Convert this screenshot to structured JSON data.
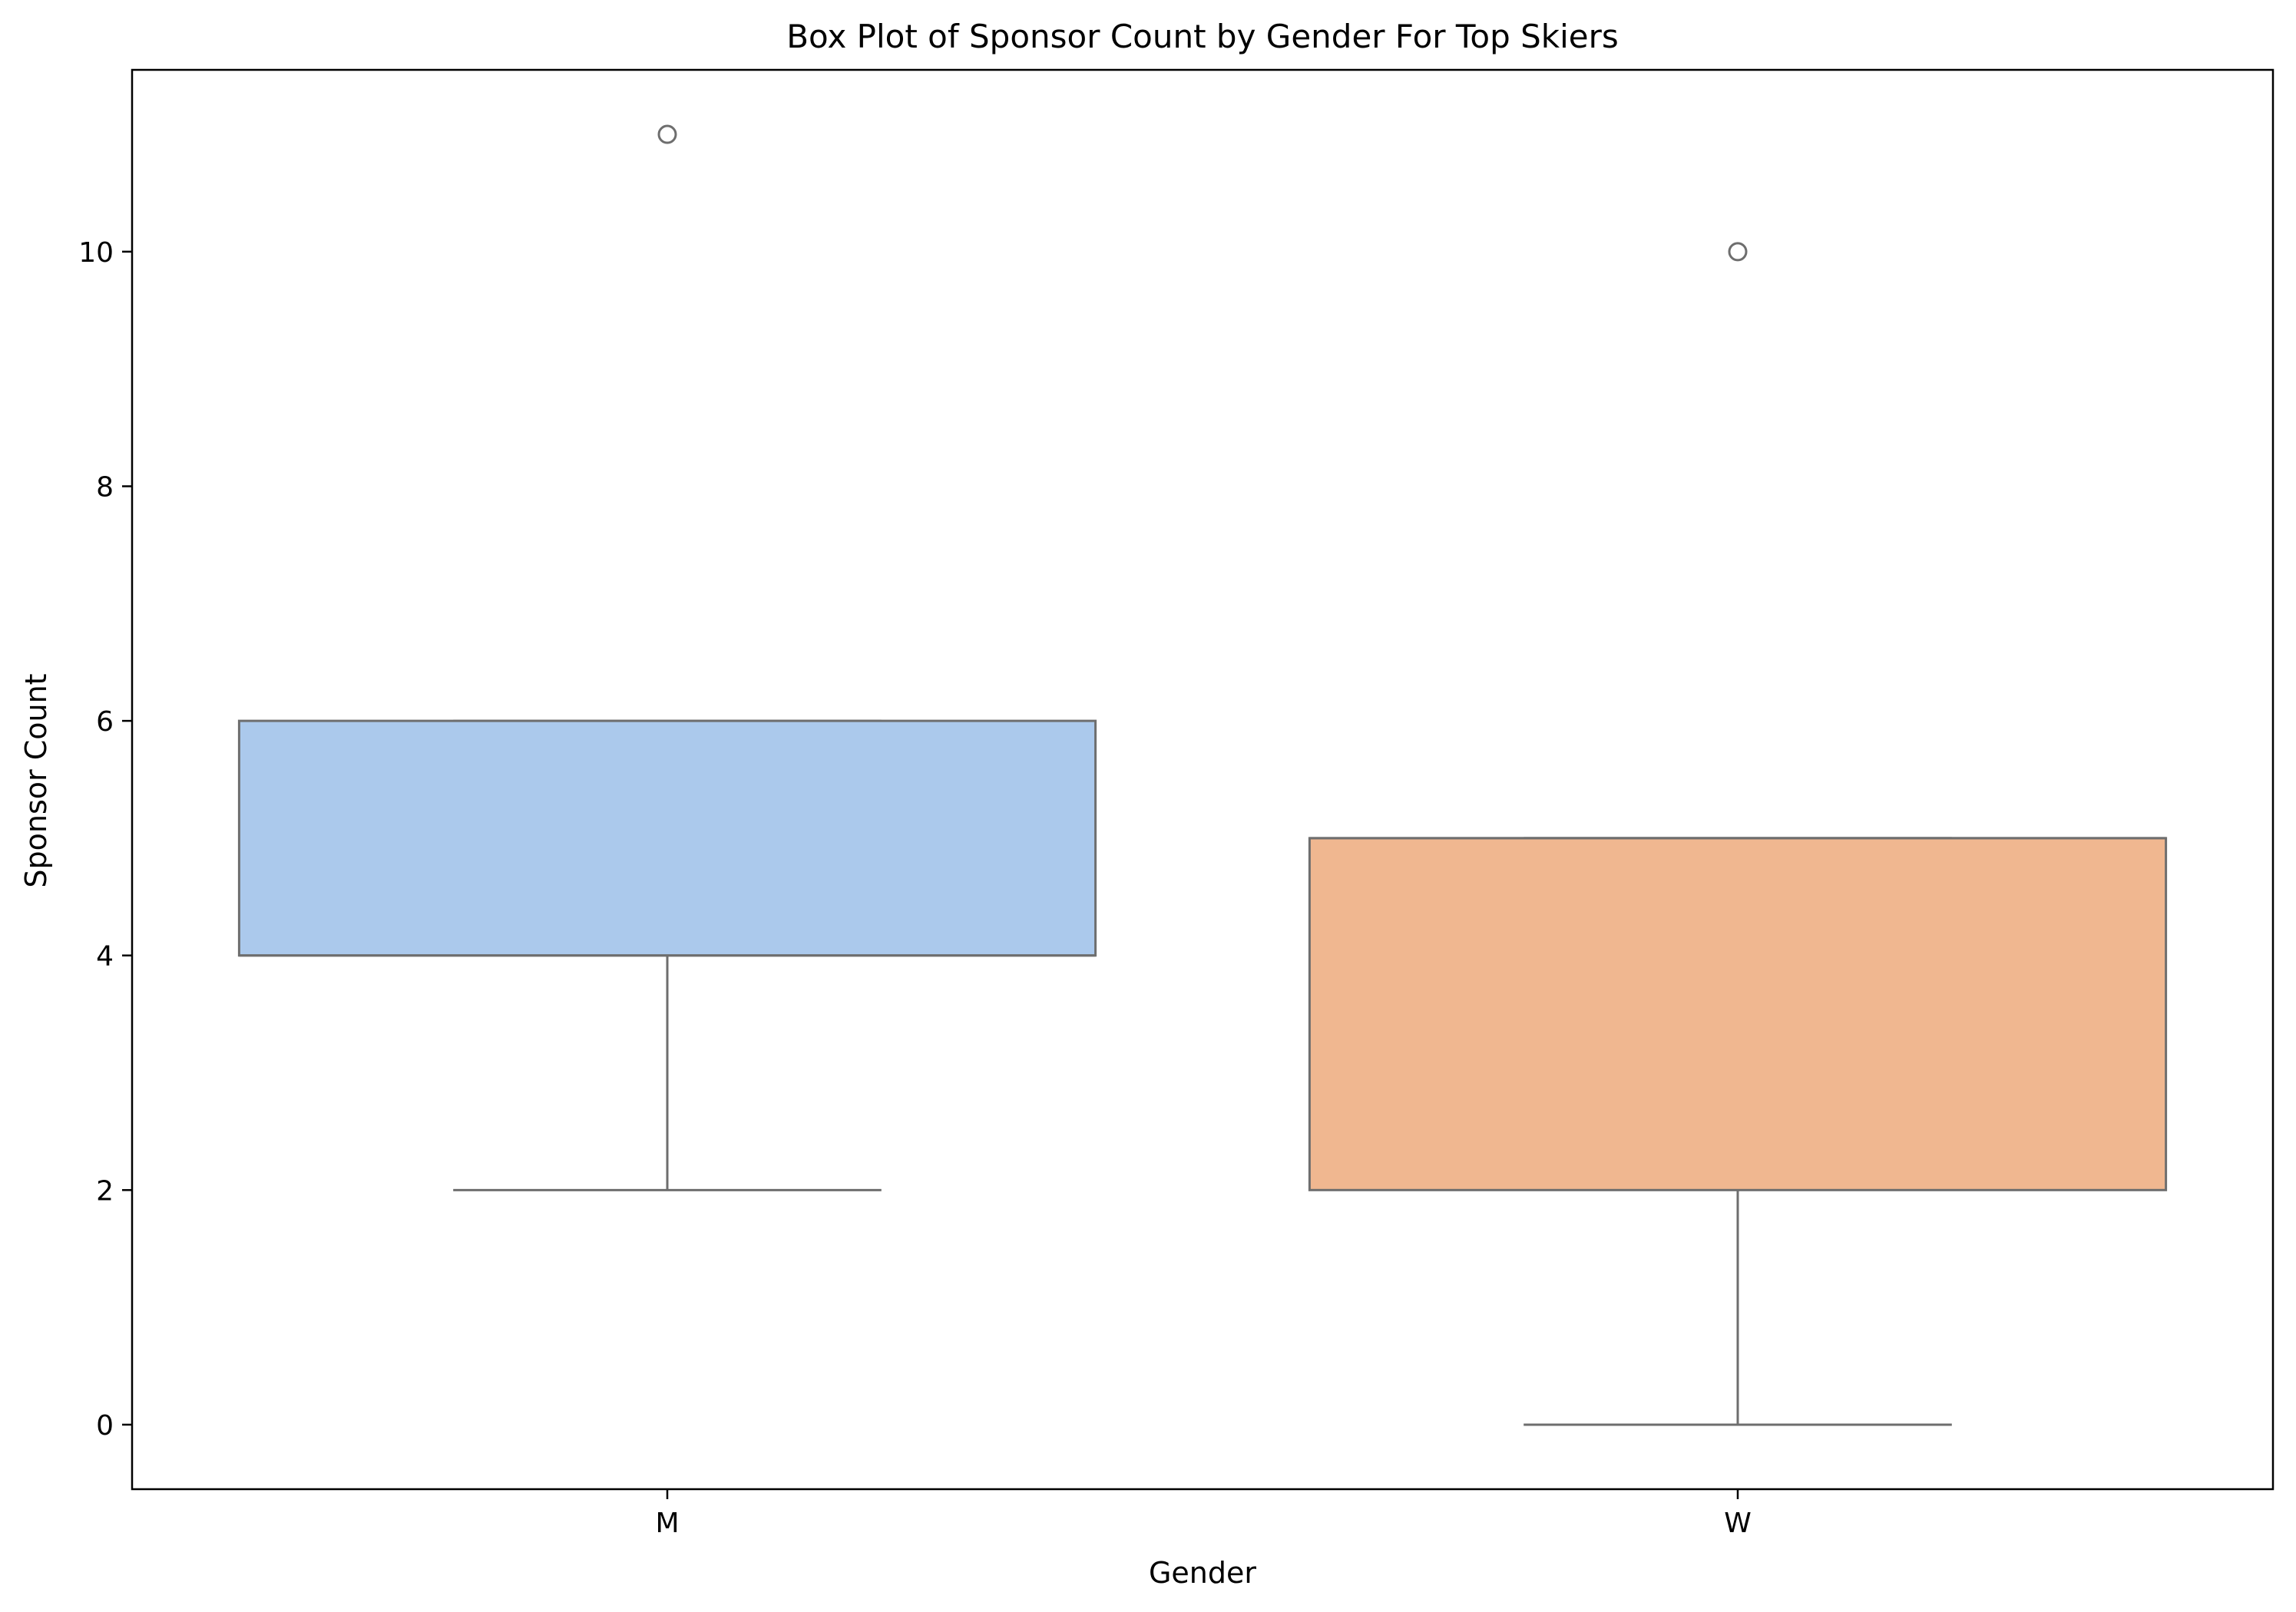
{
  "chart_data": {
    "type": "box",
    "title": "Box Plot of Sponsor Count by Gender For Top Skiers",
    "xlabel": "Gender",
    "ylabel": "Sponsor Count",
    "categories": [
      "M",
      "W"
    ],
    "ylim": [
      -0.55,
      11.55
    ],
    "yticks": [
      0,
      2,
      4,
      6,
      8,
      10
    ],
    "grid": false,
    "boxes": [
      {
        "category": "M",
        "whisker_low": 2,
        "q1": 4,
        "median": 4,
        "q3": 6,
        "whisker_high": 6,
        "outliers": [
          11
        ],
        "color": "#abc9ec"
      },
      {
        "category": "W",
        "whisker_low": 0,
        "q1": 2,
        "median": 5,
        "q3": 5,
        "whisker_high": 5,
        "outliers": [
          10
        ],
        "color": "#f0b790"
      }
    ],
    "line_color": "#6e6e6e"
  }
}
